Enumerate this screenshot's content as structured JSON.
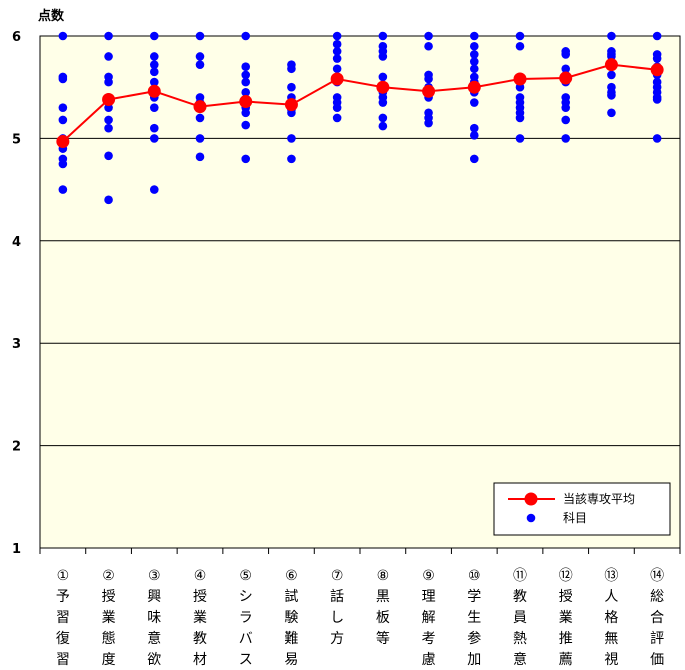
{
  "chart_data": {
    "type": "line+scatter",
    "ylabel": "点数",
    "ylim": [
      1,
      6
    ],
    "yticks": [
      "1",
      "2",
      "3",
      "4",
      "5",
      "6"
    ],
    "grid": true,
    "legend_position": "bottom-right",
    "colors": {
      "plot_bg": "#FFFFE8",
      "average": "#FF0000",
      "subjects": "#0000FF"
    },
    "categories": [
      [
        "①",
        "予",
        "習",
        "復",
        "習"
      ],
      [
        "②",
        "授",
        "業",
        "態",
        "度"
      ],
      [
        "③",
        "興",
        "味",
        "意",
        "欲"
      ],
      [
        "④",
        "授",
        "業",
        "教",
        "材"
      ],
      [
        "⑤",
        "シ",
        "ラ",
        "バ",
        "ス"
      ],
      [
        "⑥",
        "試",
        "験",
        "難",
        "易"
      ],
      [
        "⑦",
        "話",
        "し",
        "方",
        ""
      ],
      [
        "⑧",
        "黒",
        "板",
        "等",
        ""
      ],
      [
        "⑨",
        "理",
        "解",
        "考",
        "慮"
      ],
      [
        "⑩",
        "学",
        "生",
        "参",
        "加"
      ],
      [
        "⑪",
        "教",
        "員",
        "熱",
        "意"
      ],
      [
        "⑫",
        "授",
        "業",
        "推",
        "薦"
      ],
      [
        "⑬",
        "人",
        "格",
        "無",
        "視"
      ],
      [
        "⑭",
        "総",
        "合",
        "評",
        "価"
      ]
    ],
    "series": [
      {
        "name": "当該専攻平均",
        "kind": "line",
        "values": [
          4.97,
          5.38,
          5.46,
          5.31,
          5.36,
          5.33,
          5.58,
          5.5,
          5.46,
          5.5,
          5.58,
          5.59,
          5.72,
          5.67
        ]
      },
      {
        "name": "科目",
        "kind": "scatter",
        "points": [
          [
            6.0,
            5.6,
            5.58,
            5.3,
            5.18,
            5.0,
            4.95,
            4.9,
            4.8,
            4.75,
            4.5
          ],
          [
            6.0,
            5.8,
            5.6,
            5.55,
            5.4,
            5.38,
            5.3,
            5.18,
            5.1,
            4.83,
            4.4
          ],
          [
            6.0,
            5.8,
            5.72,
            5.65,
            5.55,
            5.48,
            5.4,
            5.3,
            5.1,
            5.0,
            4.5
          ],
          [
            6.0,
            5.8,
            5.72,
            5.4,
            5.35,
            5.3,
            5.2,
            5.0,
            4.82
          ],
          [
            6.0,
            5.7,
            5.62,
            5.55,
            5.45,
            5.38,
            5.3,
            5.25,
            5.13,
            4.8
          ],
          [
            5.72,
            5.68,
            5.5,
            5.4,
            5.35,
            5.28,
            5.25,
            5.0,
            4.8
          ],
          [
            6.0,
            5.92,
            5.85,
            5.78,
            5.68,
            5.6,
            5.55,
            5.4,
            5.35,
            5.3,
            5.2
          ],
          [
            6.0,
            5.9,
            5.85,
            5.8,
            5.6,
            5.45,
            5.4,
            5.35,
            5.2,
            5.12
          ],
          [
            6.0,
            5.9,
            5.62,
            5.58,
            5.5,
            5.4,
            5.25,
            5.2,
            5.15
          ],
          [
            6.0,
            5.9,
            5.82,
            5.75,
            5.68,
            5.6,
            5.55,
            5.45,
            5.35,
            5.1,
            5.03,
            4.8
          ],
          [
            6.0,
            5.9,
            5.6,
            5.55,
            5.5,
            5.4,
            5.35,
            5.3,
            5.25,
            5.2,
            5.0
          ],
          [
            5.85,
            5.82,
            5.68,
            5.62,
            5.55,
            5.4,
            5.35,
            5.3,
            5.18,
            5.0
          ],
          [
            6.0,
            5.85,
            5.82,
            5.8,
            5.7,
            5.62,
            5.5,
            5.45,
            5.42,
            5.25
          ],
          [
            6.0,
            5.82,
            5.78,
            5.7,
            5.62,
            5.55,
            5.5,
            5.45,
            5.4,
            5.38,
            5.0
          ]
        ]
      }
    ]
  }
}
